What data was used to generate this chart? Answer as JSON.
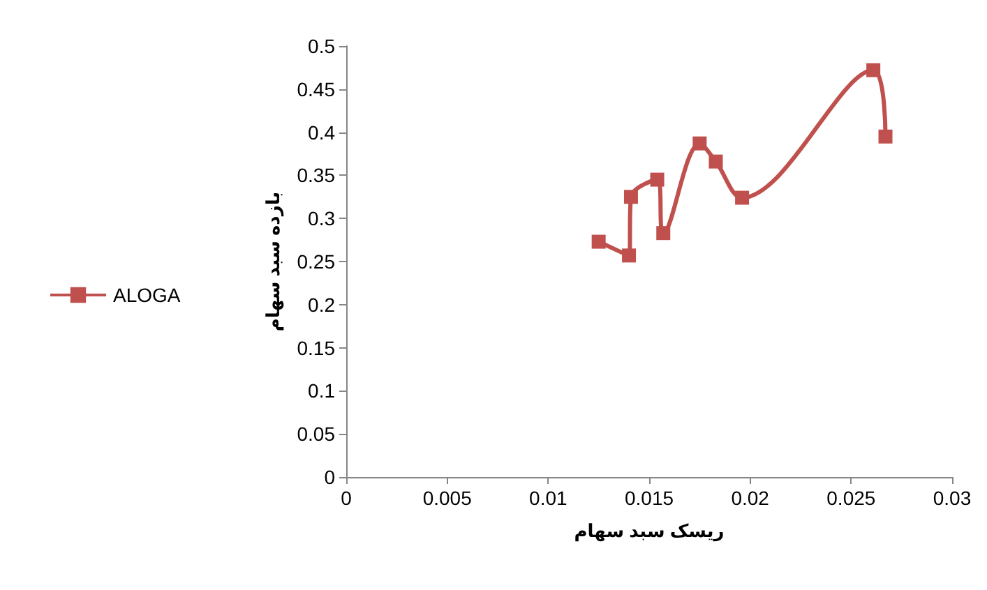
{
  "chart_data": {
    "type": "line",
    "xlabel": "ریسک سبد سهام",
    "ylabel": "بازده سبد سهام",
    "xlim": [
      0,
      0.03
    ],
    "xticks": [
      0,
      0.005,
      0.01,
      0.015,
      0.02,
      0.025,
      0.03
    ],
    "ylim": [
      0,
      0.5
    ],
    "yticks": [
      0,
      0.05,
      0.1,
      0.15,
      0.2,
      0.25,
      0.3,
      0.35,
      0.4,
      0.45,
      0.5
    ],
    "series": [
      {
        "name": "ALOGA",
        "color": "#c0504d",
        "x": [
          0.0125,
          0.014,
          0.0141,
          0.0154,
          0.0157,
          0.0175,
          0.0183,
          0.0196,
          0.0261,
          0.0267
        ],
        "values": [
          0.273,
          0.257,
          0.325,
          0.345,
          0.283,
          0.387,
          0.366,
          0.324,
          0.472,
          0.395
        ]
      }
    ],
    "marker": "square",
    "legend": "left",
    "grid": false
  }
}
